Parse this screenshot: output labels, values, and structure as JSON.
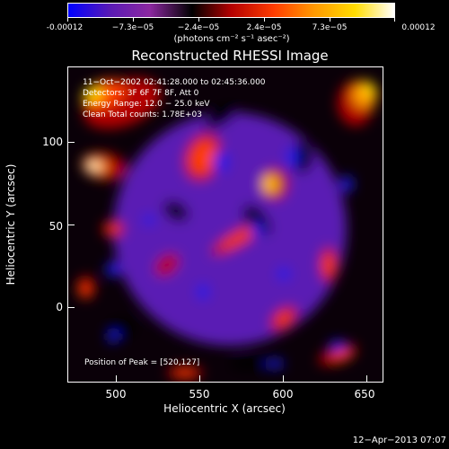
{
  "colorbar": {
    "tick_labels": [
      "-0.00012",
      "−7.3e−05",
      "−2.4e−05",
      "2.4e−05",
      "7.3e−05",
      "0.00012"
    ],
    "units": "(photons cm⁻² s⁻¹ asec⁻²)"
  },
  "title": "Reconstructed RHESSI Image",
  "info": {
    "line1": "11−Oct−2002 02:41:28.000 to 02:45:36.000",
    "line2": "Detectors: 3F 6F 7F 8F, Att 0",
    "line3": "Energy Range: 12.0 − 25.0 keV",
    "line4": "Clean    Total counts: 1.78E+03",
    "peak": "Position of Peak = [520,127]"
  },
  "axes": {
    "x_label": "Heliocentric X (arcsec)",
    "y_label": "Heliocentric Y (arcsec)",
    "x_ticks": [
      "500",
      "550",
      "600",
      "650"
    ],
    "y_ticks": [
      "100",
      "50",
      "0"
    ]
  },
  "timestamp": "12−Apr−2013 07:07",
  "colors": {
    "colormap": [
      "#0000ff",
      "#5a1ab4",
      "#8c28a0",
      "#000000",
      "#b40000",
      "#ff3c00",
      "#ff9600",
      "#ffdc00",
      "#ffffff"
    ]
  }
}
